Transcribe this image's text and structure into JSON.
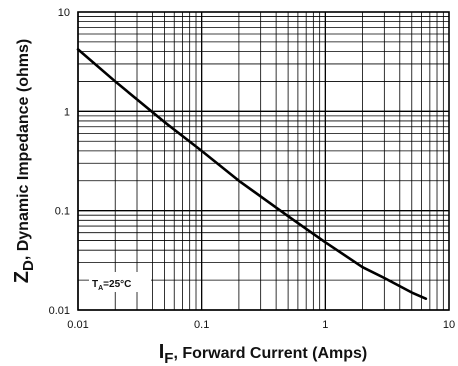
{
  "chart_data": {
    "type": "line",
    "x_scale": "log",
    "y_scale": "log",
    "xlim": [
      0.01,
      10
    ],
    "ylim": [
      0.01,
      10
    ],
    "grid": true,
    "x_tick_labels": [
      "0.01",
      "0.1",
      "1",
      "10"
    ],
    "y_tick_labels": [
      "0.01",
      "0.1",
      "1",
      "10"
    ],
    "xlabel": {
      "main": "I",
      "sub": "F",
      "rest": ", Forward Current (Amps)"
    },
    "ylabel": {
      "main": "Z",
      "sub": "D",
      "rest": ", Dynamic Impedance (ohms)"
    },
    "annotation": {
      "main": "T",
      "sub": "A",
      "rest": "=25°C"
    },
    "series": [
      {
        "x": [
          0.01,
          0.02,
          0.05,
          0.1,
          0.2,
          0.5,
          1,
          2,
          3,
          5,
          6.5
        ],
        "y": [
          4.2,
          2.0,
          0.78,
          0.4,
          0.2,
          0.088,
          0.048,
          0.027,
          0.021,
          0.015,
          0.013
        ]
      }
    ]
  }
}
